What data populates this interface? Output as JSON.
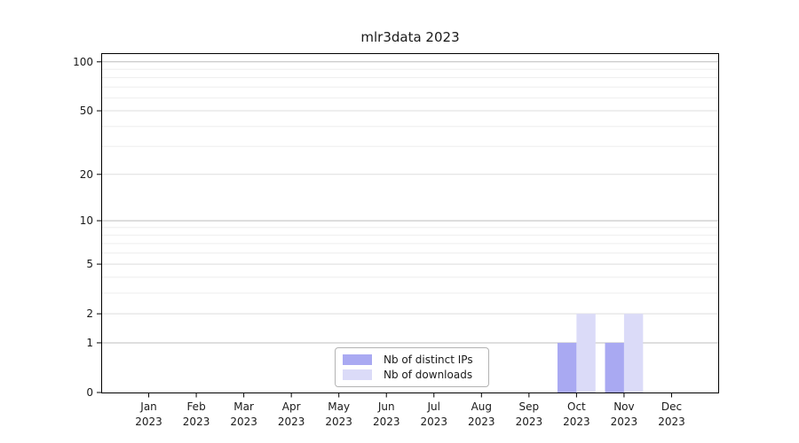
{
  "chart_data": {
    "type": "bar",
    "title": "mlr3data 2023",
    "categories": [
      "Jan 2023",
      "Feb 2023",
      "Mar 2023",
      "Apr 2023",
      "May 2023",
      "Jun 2023",
      "Jul 2023",
      "Aug 2023",
      "Sep 2023",
      "Oct 2023",
      "Nov 2023",
      "Dec 2023"
    ],
    "series": [
      {
        "name": "Nb of distinct IPs",
        "color": "#a9a9f2",
        "values": [
          0,
          0,
          0,
          0,
          0,
          0,
          0,
          0,
          0,
          1,
          1,
          0
        ]
      },
      {
        "name": "Nb of downloads",
        "color": "#dbdbf8",
        "values": [
          0,
          0,
          0,
          0,
          0,
          0,
          0,
          0,
          0,
          2,
          2,
          0
        ]
      }
    ],
    "xlabel": "",
    "ylabel": "",
    "y_axis": {
      "scale": "log1p",
      "ticks": [
        0,
        1,
        2,
        5,
        10,
        20,
        50,
        100
      ],
      "decades": [
        1,
        10,
        100
      ],
      "minor_gridlines": [
        3,
        4,
        6,
        7,
        8,
        9,
        30,
        40,
        60,
        70,
        80,
        90
      ],
      "range": [
        0,
        113
      ]
    },
    "grid": {
      "horizontal": true,
      "vertical": false
    },
    "legend": {
      "position": "lower center"
    },
    "colors": {
      "background": "#ffffff",
      "axis": "#000000",
      "text": "#1a1a1a",
      "grid_decade": "#bcbcbc",
      "grid_major": "#dedede",
      "grid_minor": "#eeeeee",
      "legend_border": "#b3b3b3"
    }
  }
}
